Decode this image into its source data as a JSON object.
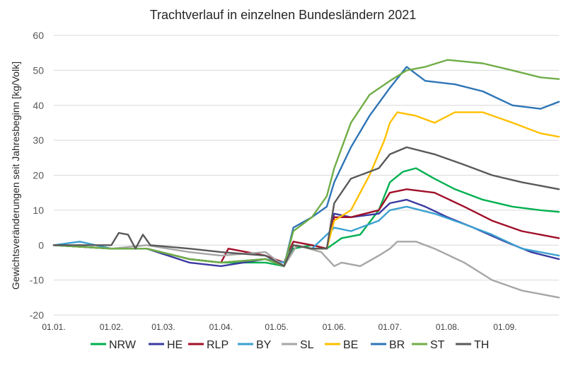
{
  "chart_data": {
    "type": "line",
    "title": "Trachtverlauf in einzelnen Bundesländern 2021",
    "xlabel": "",
    "ylabel": "Gewichtsveränderungen seit Jahresbeginn [kg/Volk]",
    "ylim": [
      -20,
      60
    ],
    "yticks": [
      -20,
      -10,
      0,
      10,
      20,
      30,
      40,
      50,
      60
    ],
    "xlim": [
      "2021-01-01",
      "2021-09-30"
    ],
    "xtick_labels": [
      "01.01.",
      "01.02.",
      "01.03.",
      "01.04.",
      "01.05.",
      "01.06.",
      "01.07.",
      "01.08.",
      "01.09."
    ],
    "xtick_dates": [
      "2021-01-01",
      "2021-02-01",
      "2021-03-01",
      "2021-04-01",
      "2021-05-01",
      "2021-06-01",
      "2021-07-01",
      "2021-08-01",
      "2021-09-01"
    ],
    "grid": "horizontal",
    "legend": "bottom",
    "series": [
      {
        "name": "NRW",
        "color": "#00b050",
        "x": [
          "2021-01-01",
          "2021-02-01",
          "2021-02-20",
          "2021-03-15",
          "2021-04-01",
          "2021-04-25",
          "2021-05-05",
          "2021-05-10",
          "2021-05-20",
          "2021-05-28",
          "2021-06-05",
          "2021-06-15",
          "2021-06-25",
          "2021-07-01",
          "2021-07-08",
          "2021-07-15",
          "2021-07-25",
          "2021-08-05",
          "2021-08-20",
          "2021-09-05",
          "2021-09-20",
          "2021-09-30"
        ],
        "y": [
          0,
          -1,
          -1,
          -4,
          -5,
          -5,
          -6,
          -1,
          0,
          -1,
          2,
          3,
          10,
          18,
          21,
          22,
          19,
          16,
          13,
          11,
          10,
          9.5
        ]
      },
      {
        "name": "HE",
        "color": "#3a3aa0",
        "x": [
          "2021-01-01",
          "2021-02-01",
          "2021-02-20",
          "2021-03-15",
          "2021-04-01",
          "2021-04-25",
          "2021-05-05",
          "2021-05-10",
          "2021-05-20",
          "2021-05-28",
          "2021-06-01",
          "2021-06-10",
          "2021-06-25",
          "2021-07-01",
          "2021-07-10",
          "2021-07-20",
          "2021-08-01",
          "2021-08-15",
          "2021-09-01",
          "2021-09-15",
          "2021-09-30"
        ],
        "y": [
          0,
          -1,
          -1,
          -5,
          -6,
          -4,
          -6,
          0,
          -1,
          -1,
          9,
          8,
          9,
          12,
          13,
          11,
          8,
          5,
          1,
          -2,
          -4
        ]
      },
      {
        "name": "RLP",
        "color": "#a0102a",
        "x": [
          "2021-01-01",
          "2021-02-01",
          "2021-02-20",
          "2021-03-15",
          "2021-04-01",
          "2021-04-05",
          "2021-04-25",
          "2021-05-05",
          "2021-05-10",
          "2021-05-20",
          "2021-05-28",
          "2021-06-01",
          "2021-06-10",
          "2021-06-25",
          "2021-07-01",
          "2021-07-10",
          "2021-07-25",
          "2021-08-10",
          "2021-08-25",
          "2021-09-10",
          "2021-09-30"
        ],
        "y": [
          0,
          -1,
          -1,
          -4,
          -5,
          -1,
          -3,
          -5,
          1,
          0,
          -1,
          8,
          8,
          10,
          15,
          16,
          15,
          11,
          7,
          4,
          2
        ]
      },
      {
        "name": "BY",
        "color": "#3aa0d0",
        "x": [
          "2021-01-01",
          "2021-01-15",
          "2021-02-01",
          "2021-02-20",
          "2021-03-15",
          "2021-04-01",
          "2021-04-25",
          "2021-05-05",
          "2021-05-10",
          "2021-05-20",
          "2021-06-01",
          "2021-06-10",
          "2021-06-25",
          "2021-07-01",
          "2021-07-10",
          "2021-07-25",
          "2021-08-10",
          "2021-08-25",
          "2021-09-10",
          "2021-09-30"
        ],
        "y": [
          0,
          1,
          -1,
          -1,
          -4,
          -5,
          -4,
          -5,
          0,
          -1,
          5,
          4,
          7,
          10,
          11,
          9,
          6,
          3,
          -1,
          -3
        ]
      },
      {
        "name": "SL",
        "color": "#a6a6a6",
        "x": [
          "2021-01-01",
          "2021-02-01",
          "2021-02-20",
          "2021-03-15",
          "2021-04-01",
          "2021-04-25",
          "2021-05-05",
          "2021-05-12",
          "2021-05-25",
          "2021-06-01",
          "2021-06-05",
          "2021-06-15",
          "2021-06-25",
          "2021-07-01",
          "2021-07-05",
          "2021-07-15",
          "2021-07-25",
          "2021-08-10",
          "2021-08-25",
          "2021-09-10",
          "2021-09-30"
        ],
        "y": [
          0,
          -1,
          0,
          -2,
          -3,
          -2,
          -6,
          0,
          -2,
          -6,
          -5,
          -6,
          -3,
          -1,
          1,
          1,
          -1,
          -5,
          -10,
          -13,
          -15
        ]
      },
      {
        "name": "BE",
        "color": "#ffc000",
        "x": [
          "2021-01-01",
          "2021-02-01",
          "2021-02-20",
          "2021-03-15",
          "2021-04-01",
          "2021-04-25",
          "2021-05-05",
          "2021-05-10",
          "2021-05-20",
          "2021-05-28",
          "2021-06-01",
          "2021-06-10",
          "2021-06-20",
          "2021-06-28",
          "2021-07-01",
          "2021-07-05",
          "2021-07-15",
          "2021-07-25",
          "2021-08-05",
          "2021-08-20",
          "2021-09-05",
          "2021-09-20",
          "2021-09-30"
        ],
        "y": [
          0,
          -1,
          -1,
          -4,
          -5,
          -4,
          -6,
          0,
          -1,
          -1,
          7,
          10,
          20,
          30,
          35,
          38,
          37,
          35,
          38,
          38,
          35,
          32,
          31
        ]
      },
      {
        "name": "BR",
        "color": "#2e75b6",
        "x": [
          "2021-01-01",
          "2021-02-01",
          "2021-02-20",
          "2021-03-15",
          "2021-04-01",
          "2021-04-25",
          "2021-05-05",
          "2021-05-10",
          "2021-05-20",
          "2021-05-28",
          "2021-06-01",
          "2021-06-10",
          "2021-06-20",
          "2021-07-01",
          "2021-07-10",
          "2021-07-20",
          "2021-08-05",
          "2021-08-20",
          "2021-09-05",
          "2021-09-20",
          "2021-09-30"
        ],
        "y": [
          0,
          -1,
          -1,
          -4,
          -5,
          -4,
          -6,
          5,
          8,
          11,
          18,
          28,
          37,
          45,
          51,
          47,
          46,
          44,
          40,
          39,
          41
        ]
      },
      {
        "name": "ST",
        "color": "#70ad47",
        "x": [
          "2021-01-01",
          "2021-02-01",
          "2021-02-20",
          "2021-03-15",
          "2021-04-01",
          "2021-04-25",
          "2021-05-05",
          "2021-05-10",
          "2021-05-20",
          "2021-05-28",
          "2021-06-01",
          "2021-06-10",
          "2021-06-20",
          "2021-07-01",
          "2021-07-10",
          "2021-07-20",
          "2021-08-01",
          "2021-08-20",
          "2021-09-05",
          "2021-09-20",
          "2021-09-30"
        ],
        "y": [
          0,
          -1,
          -1,
          -4,
          -5,
          -4,
          -6,
          4,
          8,
          14,
          22,
          35,
          43,
          47,
          50,
          51,
          53,
          52,
          50,
          48,
          47.5
        ]
      },
      {
        "name": "TH",
        "color": "#595959",
        "x": [
          "2021-01-01",
          "2021-02-01",
          "2021-02-05",
          "2021-02-10",
          "2021-02-14",
          "2021-02-18",
          "2021-02-22",
          "2021-03-15",
          "2021-04-01",
          "2021-04-25",
          "2021-05-05",
          "2021-05-10",
          "2021-05-20",
          "2021-05-28",
          "2021-06-01",
          "2021-06-10",
          "2021-06-25",
          "2021-07-01",
          "2021-07-10",
          "2021-07-25",
          "2021-08-10",
          "2021-08-25",
          "2021-09-10",
          "2021-09-30"
        ],
        "y": [
          0,
          0,
          3.5,
          3,
          -1,
          3,
          0,
          -1,
          -2,
          -3,
          -6,
          0,
          -1,
          -1,
          12,
          19,
          22,
          26,
          28,
          26,
          23,
          20,
          18,
          16
        ]
      }
    ]
  }
}
